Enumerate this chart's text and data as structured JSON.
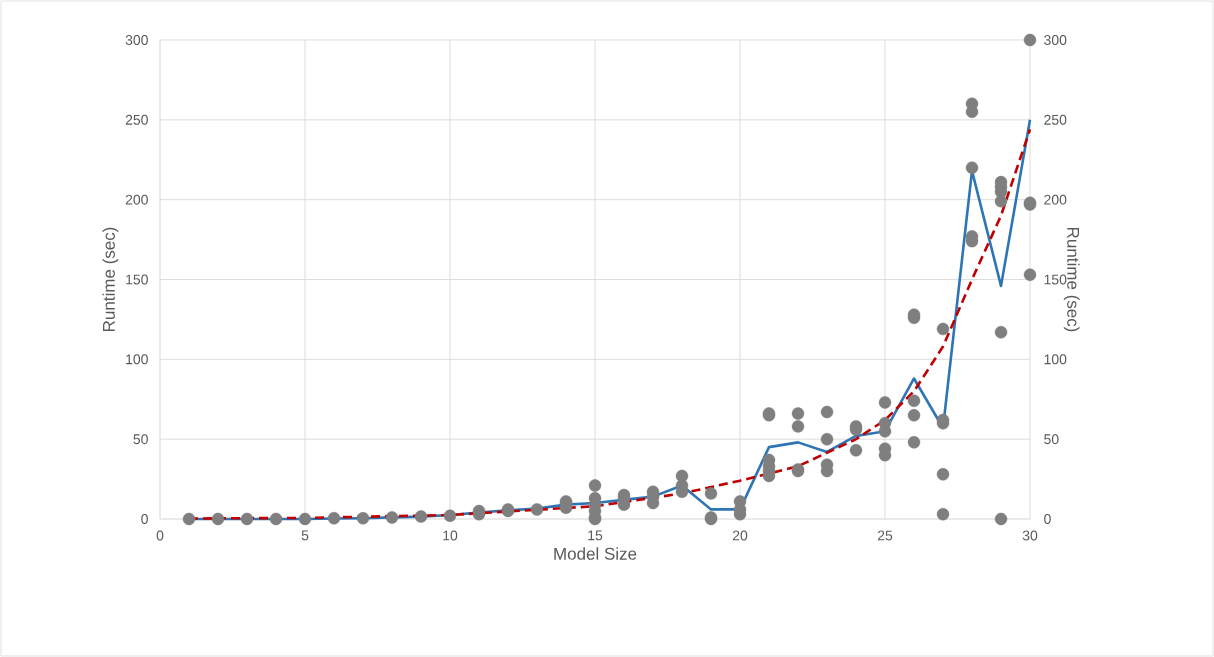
{
  "chart_data": {
    "type": "scatter",
    "xlabel": "Model Size",
    "ylabel": "Runtime (sec)",
    "y2label": "Runtime (sec)",
    "xlim": [
      0,
      30
    ],
    "xticks": [
      0,
      5,
      10,
      15,
      20,
      25,
      30
    ],
    "ylim": [
      0,
      300
    ],
    "yticks": [
      0,
      50,
      100,
      150,
      200,
      250,
      300
    ],
    "y2lim": [
      0,
      300
    ],
    "y2ticks": [
      0,
      50,
      100,
      150,
      200,
      250,
      300
    ],
    "grid": true,
    "series": [
      {
        "color": "#7f7f7f",
        "marker": "circle",
        "x": [
          1,
          2,
          3,
          4,
          5,
          6,
          7,
          8,
          9,
          10,
          11,
          11,
          12,
          12,
          13,
          14,
          14,
          14,
          15,
          15,
          15,
          15,
          15,
          15,
          16,
          16,
          16,
          17,
          17,
          17,
          18,
          18,
          18,
          19,
          19,
          19,
          20,
          20,
          20,
          21,
          21,
          21,
          21,
          21,
          21,
          22,
          22,
          22,
          22,
          23,
          23,
          23,
          23,
          24,
          24,
          24,
          25,
          25,
          25,
          25,
          25,
          26,
          26,
          26,
          26,
          26,
          27,
          27,
          27,
          27,
          27,
          28,
          28,
          28,
          28,
          28,
          29,
          29,
          29,
          29,
          29,
          29,
          30,
          30,
          30,
          30
        ],
        "values": [
          0,
          0,
          0,
          0,
          0,
          0.5,
          0.5,
          1,
          1.5,
          2,
          3,
          5,
          5,
          6,
          6,
          7,
          10,
          11,
          0,
          1,
          5,
          9,
          13,
          21,
          9,
          13,
          15,
          10,
          14,
          17,
          17,
          21,
          27,
          0,
          1,
          16,
          3,
          6,
          11,
          27,
          30,
          33,
          37,
          65,
          66,
          30,
          31,
          58,
          66,
          30,
          34,
          50,
          67,
          43,
          56,
          58,
          40,
          44,
          55,
          60,
          73,
          48,
          65,
          74,
          126,
          128,
          3,
          28,
          60,
          62,
          119,
          174,
          177,
          220,
          255,
          260,
          0,
          117,
          199,
          205,
          208,
          211,
          153,
          197,
          198,
          300
        ]
      },
      {
        "type": "line",
        "color": "#2e75b6",
        "marker": "none",
        "line_style": "solid",
        "x": [
          1,
          2,
          3,
          4,
          5,
          6,
          7,
          8,
          9,
          10,
          11,
          12,
          13,
          14,
          15,
          16,
          17,
          18,
          19,
          20,
          21,
          22,
          23,
          24,
          25,
          26,
          27,
          28,
          29,
          30
        ],
        "values": [
          0,
          0,
          0,
          0,
          0,
          0.3,
          0.5,
          1,
          1.5,
          2.5,
          4,
          5.5,
          6.5,
          9,
          10,
          12,
          14,
          21,
          6,
          6,
          45,
          48,
          42,
          52,
          55,
          88,
          57,
          218,
          146,
          250
        ]
      },
      {
        "type": "line",
        "color": "#c00000",
        "marker": "none",
        "line_style": "dashed",
        "x": [
          1,
          5,
          10,
          15,
          18,
          20,
          22,
          24,
          25,
          26,
          27,
          28,
          29,
          30
        ],
        "values": [
          0.3,
          0.7,
          2.5,
          8,
          16,
          24,
          33,
          50,
          62,
          80,
          108,
          150,
          190,
          244
        ]
      }
    ]
  }
}
